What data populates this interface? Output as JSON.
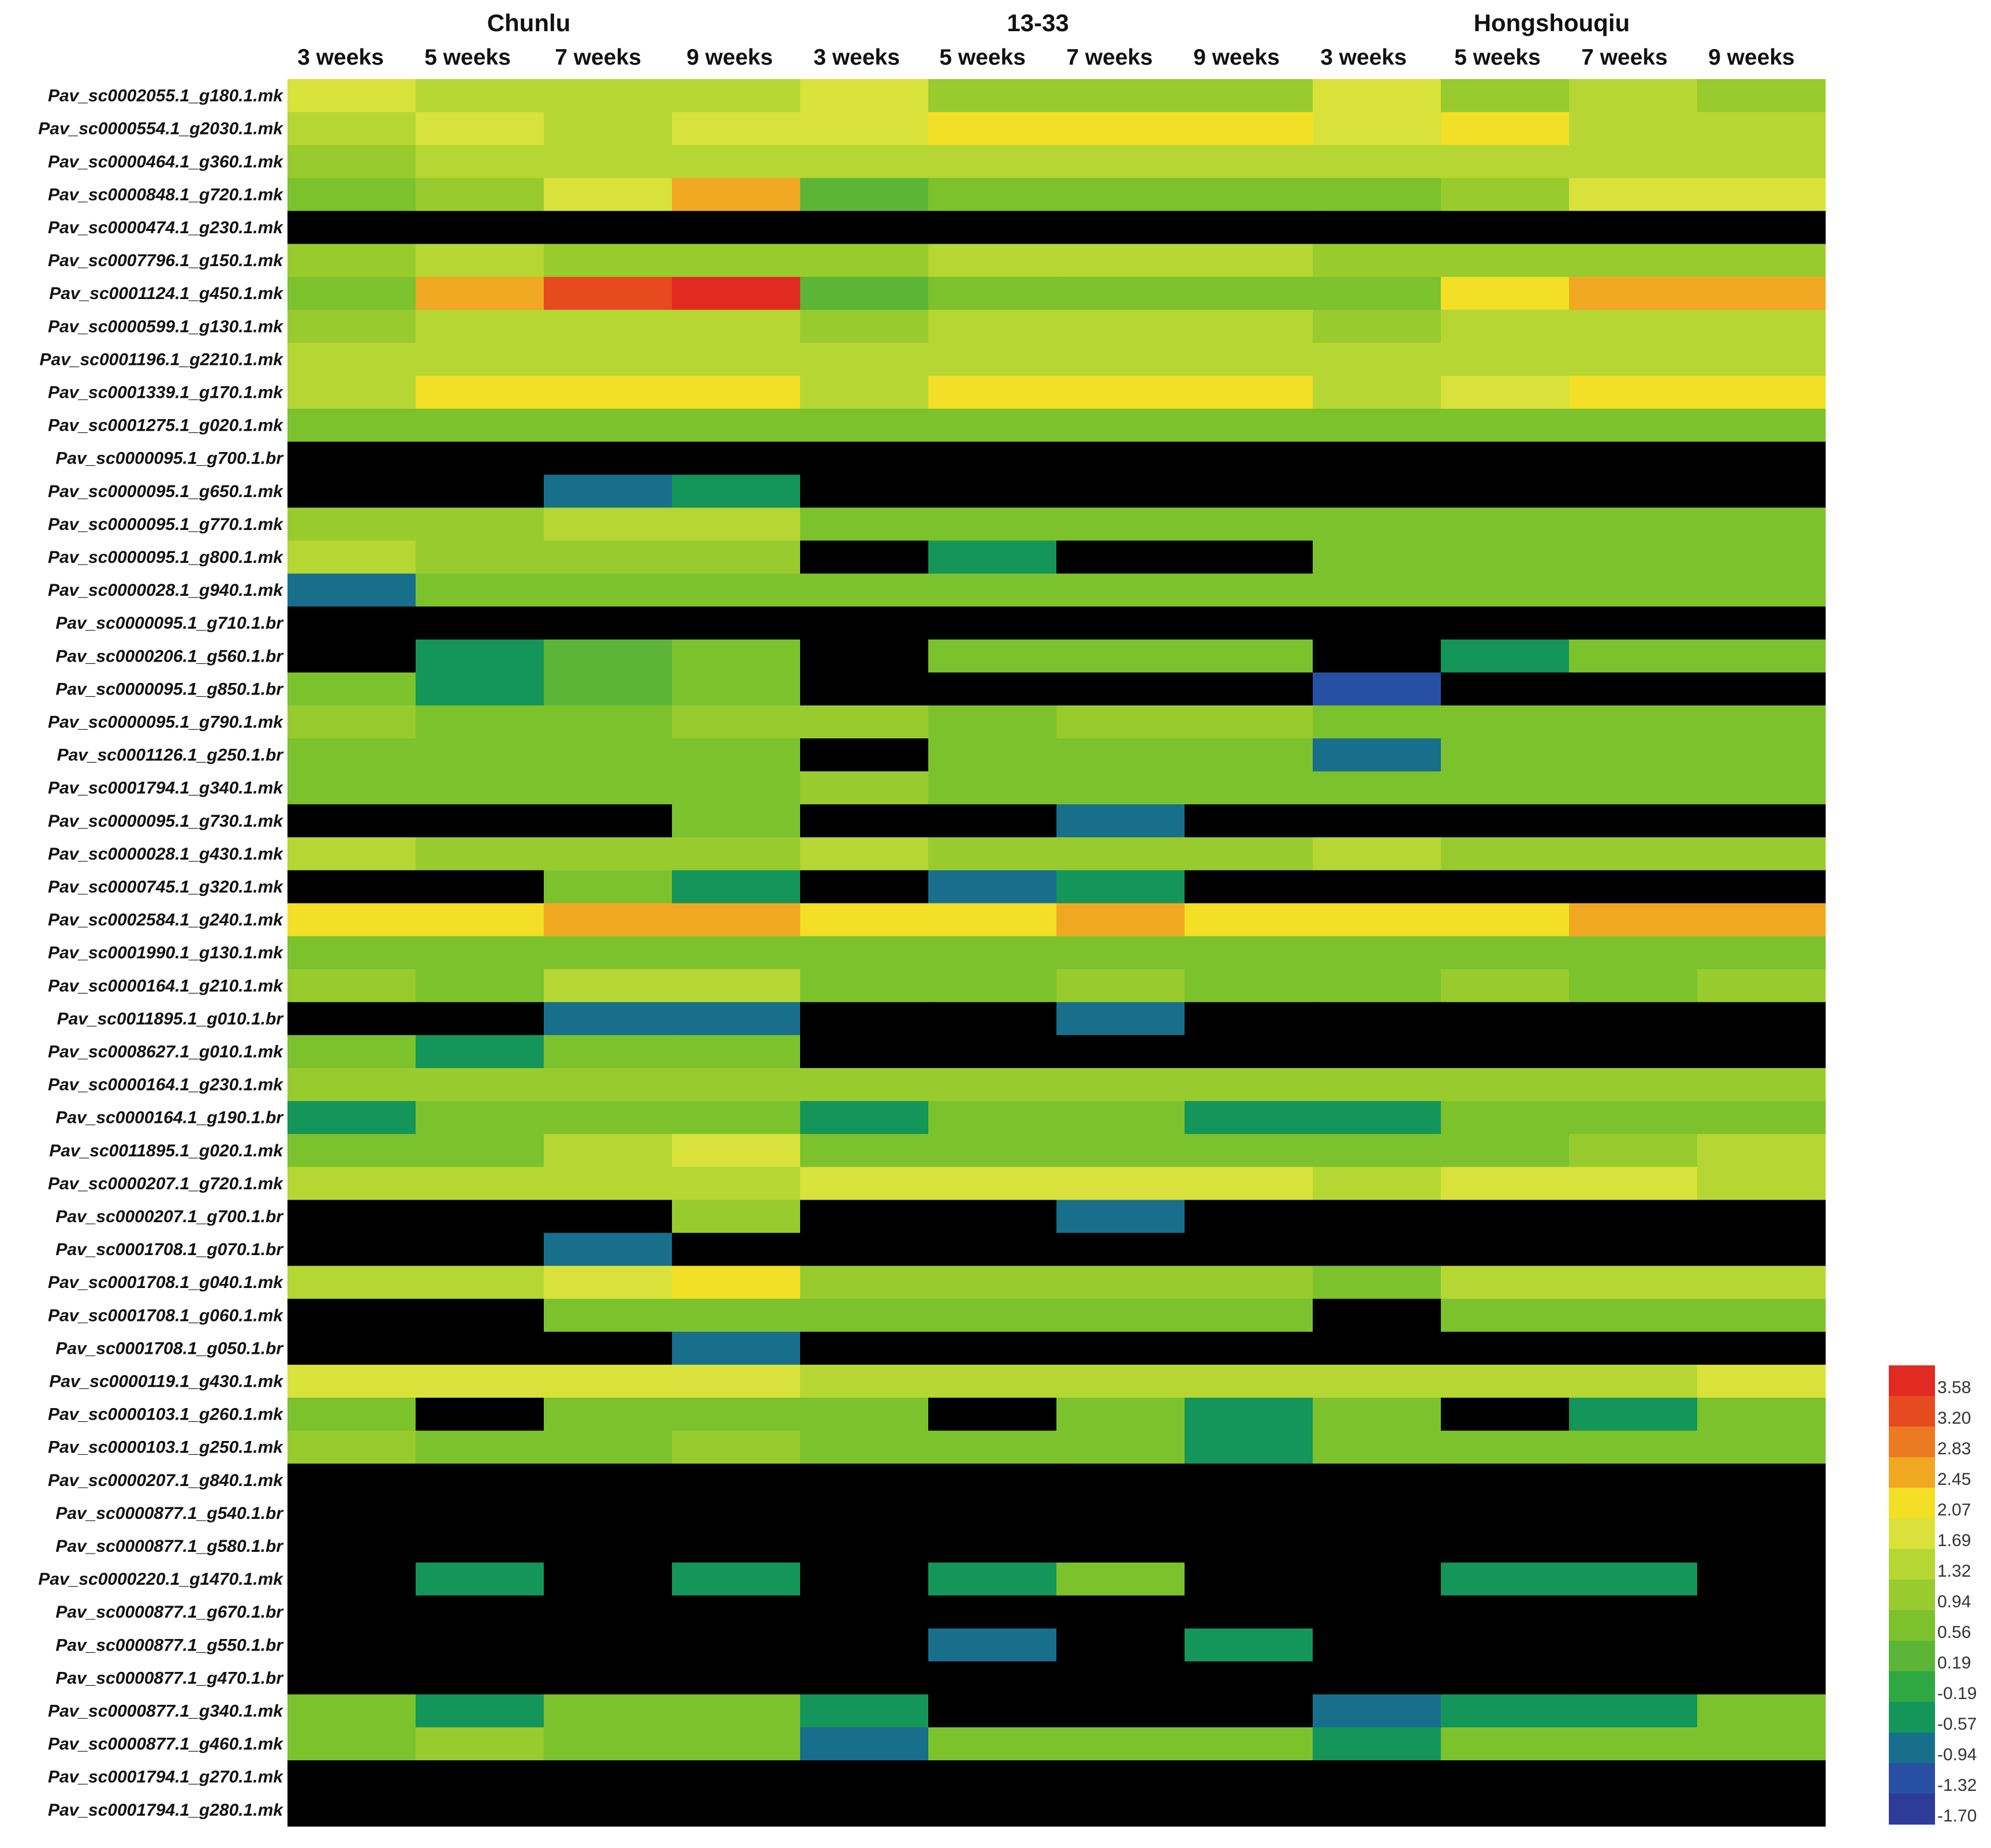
{
  "chart_data": {
    "type": "heatmap",
    "title": "",
    "groups": [
      "Chunlu",
      "13-33",
      "Hongshouqiu"
    ],
    "columns": [
      "3 weeks",
      "5 weeks",
      "7 weeks",
      "9 weeks",
      "3 weeks",
      "5 weeks",
      "7 weeks",
      "9 weeks",
      "3 weeks",
      "5 weeks",
      "7 weeks",
      "9 weeks"
    ],
    "rows": [
      "Pav_sc0002055.1_g180.1.mk",
      "Pav_sc0000554.1_g2030.1.mk",
      "Pav_sc0000464.1_g360.1.mk",
      "Pav_sc0000848.1_g720.1.mk",
      "Pav_sc0000474.1_g230.1.mk",
      "Pav_sc0007796.1_g150.1.mk",
      "Pav_sc0001124.1_g450.1.mk",
      "Pav_sc0000599.1_g130.1.mk",
      "Pav_sc0001196.1_g2210.1.mk",
      "Pav_sc0001339.1_g170.1.mk",
      "Pav_sc0001275.1_g020.1.mk",
      "Pav_sc0000095.1_g700.1.br",
      "Pav_sc0000095.1_g650.1.mk",
      "Pav_sc0000095.1_g770.1.mk",
      "Pav_sc0000095.1_g800.1.mk",
      "Pav_sc0000028.1_g940.1.mk",
      "Pav_sc0000095.1_g710.1.br",
      "Pav_sc0000206.1_g560.1.br",
      "Pav_sc0000095.1_g850.1.br",
      "Pav_sc0000095.1_g790.1.mk",
      "Pav_sc0001126.1_g250.1.br",
      "Pav_sc0001794.1_g340.1.mk",
      "Pav_sc0000095.1_g730.1.mk",
      "Pav_sc0000028.1_g430.1.mk",
      "Pav_sc0000745.1_g320.1.mk",
      "Pav_sc0002584.1_g240.1.mk",
      "Pav_sc0001990.1_g130.1.mk",
      "Pav_sc0000164.1_g210.1.mk",
      "Pav_sc0011895.1_g010.1.br",
      "Pav_sc0008627.1_g010.1.mk",
      "Pav_sc0000164.1_g230.1.mk",
      "Pav_sc0000164.1_g190.1.br",
      "Pav_sc0011895.1_g020.1.mk",
      "Pav_sc0000207.1_g720.1.mk",
      "Pav_sc0000207.1_g700.1.br",
      "Pav_sc0001708.1_g070.1.br",
      "Pav_sc0001708.1_g040.1.mk",
      "Pav_sc0001708.1_g060.1.mk",
      "Pav_sc0001708.1_g050.1.br",
      "Pav_sc0000119.1_g430.1.mk",
      "Pav_sc0000103.1_g260.1.mk",
      "Pav_sc0000103.1_g250.1.mk",
      "Pav_sc0000207.1_g840.1.mk",
      "Pav_sc0000877.1_g540.1.br",
      "Pav_sc0000877.1_g580.1.br",
      "Pav_sc0000220.1_g1470.1.mk",
      "Pav_sc0000877.1_g670.1.br",
      "Pav_sc0000877.1_g550.1.br",
      "Pav_sc0000877.1_g470.1.br",
      "Pav_sc0000877.1_g340.1.mk",
      "Pav_sc0000877.1_g460.1.mk",
      "Pav_sc0001794.1_g270.1.mk",
      "Pav_sc0001794.1_g280.1.mk"
    ],
    "missing_value_color": "#000000",
    "values": [
      [
        1.69,
        1.2,
        1.2,
        1.2,
        1.69,
        1.0,
        1.0,
        1.0,
        1.69,
        1.0,
        1.2,
        1.0
      ],
      [
        1.2,
        1.69,
        1.2,
        1.69,
        1.69,
        2.07,
        2.07,
        2.07,
        1.69,
        2.07,
        1.5,
        1.5
      ],
      [
        0.85,
        1.2,
        1.2,
        1.2,
        1.2,
        1.2,
        1.2,
        1.2,
        1.2,
        1.2,
        1.2,
        1.2
      ],
      [
        0.6,
        0.85,
        1.69,
        2.45,
        0.19,
        0.6,
        0.6,
        0.6,
        0.6,
        0.85,
        1.69,
        1.69
      ],
      [
        null,
        null,
        null,
        null,
        null,
        null,
        null,
        null,
        null,
        null,
        null,
        null
      ],
      [
        0.94,
        1.2,
        1.0,
        1.0,
        1.0,
        1.2,
        1.2,
        1.2,
        0.94,
        1.0,
        1.0,
        1.0
      ],
      [
        0.6,
        2.45,
        3.2,
        3.58,
        0.19,
        0.6,
        0.6,
        0.6,
        0.4,
        2.07,
        2.45,
        2.45
      ],
      [
        0.85,
        1.2,
        1.2,
        1.2,
        0.94,
        1.2,
        1.2,
        1.2,
        0.94,
        1.2,
        1.2,
        1.2
      ],
      [
        1.2,
        1.5,
        1.5,
        1.5,
        1.5,
        1.5,
        1.5,
        1.5,
        1.5,
        1.5,
        1.5,
        1.5
      ],
      [
        1.2,
        2.07,
        2.07,
        2.07,
        1.2,
        2.07,
        2.07,
        2.07,
        1.2,
        1.69,
        2.07,
        2.07
      ],
      [
        0.56,
        0.56,
        0.56,
        0.56,
        0.56,
        0.56,
        0.56,
        0.56,
        0.56,
        0.56,
        0.56,
        0.56
      ],
      [
        null,
        null,
        null,
        null,
        null,
        null,
        null,
        null,
        null,
        null,
        null,
        null
      ],
      [
        null,
        null,
        -0.94,
        -0.57,
        null,
        null,
        null,
        null,
        null,
        null,
        null,
        null
      ],
      [
        0.94,
        0.94,
        1.2,
        1.2,
        0.6,
        0.56,
        0.6,
        0.6,
        0.6,
        0.6,
        0.6,
        0.6
      ],
      [
        1.2,
        0.94,
        0.94,
        0.94,
        null,
        -0.57,
        null,
        null,
        0.56,
        0.56,
        0.56,
        0.56
      ],
      [
        -0.94,
        0.4,
        0.4,
        0.4,
        0.4,
        0.56,
        0.4,
        0.4,
        0.4,
        0.4,
        0.4,
        0.56
      ],
      [
        null,
        null,
        null,
        null,
        null,
        null,
        null,
        null,
        null,
        null,
        null,
        null
      ],
      [
        null,
        -0.57,
        0.19,
        0.56,
        null,
        0.4,
        0.56,
        0.56,
        null,
        -0.57,
        0.4,
        0.56
      ],
      [
        0.56,
        -0.57,
        0.19,
        0.4,
        null,
        null,
        null,
        null,
        -1.32,
        null,
        null,
        null
      ],
      [
        0.94,
        0.56,
        0.56,
        0.94,
        0.94,
        0.56,
        0.94,
        0.94,
        0.56,
        0.56,
        0.56,
        0.56
      ],
      [
        0.4,
        0.4,
        0.56,
        0.56,
        null,
        0.56,
        0.56,
        0.56,
        -0.94,
        0.56,
        0.56,
        0.56
      ],
      [
        0.56,
        0.56,
        0.56,
        0.56,
        0.94,
        0.56,
        0.56,
        0.56,
        0.56,
        0.56,
        0.56,
        0.56
      ],
      [
        null,
        null,
        null,
        0.4,
        null,
        null,
        -0.94,
        null,
        null,
        null,
        null,
        null
      ],
      [
        1.2,
        0.94,
        0.94,
        0.94,
        1.2,
        0.94,
        0.94,
        0.94,
        1.2,
        0.94,
        0.94,
        0.94
      ],
      [
        null,
        null,
        0.4,
        -0.57,
        null,
        -0.94,
        -0.57,
        null,
        null,
        null,
        null,
        null
      ],
      [
        2.07,
        2.07,
        2.45,
        2.45,
        2.07,
        2.07,
        2.45,
        2.07,
        2.07,
        2.07,
        2.45,
        2.45
      ],
      [
        0.56,
        0.56,
        0.56,
        0.56,
        0.56,
        0.56,
        0.56,
        0.56,
        0.56,
        0.56,
        0.56,
        0.56
      ],
      [
        0.94,
        0.56,
        1.2,
        1.2,
        0.56,
        0.56,
        0.94,
        0.56,
        0.56,
        0.94,
        0.56,
        0.94
      ],
      [
        null,
        null,
        -0.94,
        -0.94,
        null,
        null,
        -0.94,
        null,
        null,
        null,
        null,
        null
      ],
      [
        0.4,
        -0.57,
        0.56,
        0.56,
        null,
        null,
        null,
        null,
        null,
        null,
        null,
        null
      ],
      [
        0.94,
        0.94,
        0.94,
        0.94,
        0.94,
        0.94,
        0.94,
        0.94,
        0.94,
        0.94,
        0.94,
        0.94
      ],
      [
        -0.57,
        0.4,
        0.56,
        0.56,
        -0.57,
        0.56,
        0.4,
        -0.57,
        -0.57,
        0.4,
        0.56,
        0.56
      ],
      [
        0.56,
        0.56,
        1.2,
        1.69,
        0.56,
        0.56,
        0.56,
        0.4,
        0.56,
        0.56,
        0.94,
        1.2
      ],
      [
        1.2,
        1.2,
        1.2,
        1.2,
        1.69,
        1.69,
        1.69,
        1.69,
        1.2,
        1.69,
        1.69,
        1.2
      ],
      [
        null,
        null,
        null,
        0.94,
        null,
        null,
        -0.94,
        null,
        null,
        null,
        null,
        null
      ],
      [
        null,
        null,
        -0.94,
        null,
        null,
        null,
        null,
        null,
        null,
        null,
        null,
        null
      ],
      [
        1.2,
        1.2,
        1.69,
        2.07,
        0.94,
        0.94,
        0.94,
        0.94,
        0.56,
        1.2,
        1.2,
        1.2
      ],
      [
        null,
        null,
        0.4,
        0.56,
        0.56,
        0.56,
        0.56,
        0.56,
        null,
        0.56,
        0.56,
        0.56
      ],
      [
        null,
        null,
        null,
        -0.94,
        null,
        null,
        null,
        null,
        null,
        null,
        null,
        null
      ],
      [
        1.69,
        1.69,
        1.69,
        1.69,
        1.2,
        1.2,
        1.2,
        1.2,
        1.2,
        1.2,
        1.2,
        1.69
      ],
      [
        0.56,
        null,
        0.4,
        0.56,
        0.4,
        null,
        0.56,
        -0.57,
        0.56,
        null,
        -0.57,
        0.56
      ],
      [
        0.94,
        0.4,
        0.56,
        0.94,
        0.56,
        0.4,
        0.56,
        -0.57,
        0.56,
        0.4,
        0.56,
        0.56
      ],
      [
        null,
        null,
        null,
        null,
        null,
        null,
        null,
        null,
        null,
        null,
        null,
        null
      ],
      [
        null,
        null,
        null,
        null,
        null,
        null,
        null,
        null,
        null,
        null,
        null,
        null
      ],
      [
        null,
        null,
        null,
        null,
        null,
        null,
        null,
        null,
        null,
        null,
        null,
        null
      ],
      [
        null,
        -0.57,
        null,
        -0.57,
        null,
        -0.57,
        0.4,
        null,
        null,
        -0.57,
        -0.57,
        null
      ],
      [
        null,
        null,
        null,
        null,
        null,
        null,
        null,
        null,
        null,
        null,
        null,
        null
      ],
      [
        null,
        null,
        null,
        null,
        null,
        -0.94,
        null,
        -0.57,
        null,
        null,
        null,
        null
      ],
      [
        null,
        null,
        null,
        null,
        null,
        null,
        null,
        null,
        null,
        null,
        null,
        null
      ],
      [
        0.4,
        -0.57,
        0.4,
        0.4,
        -0.57,
        null,
        null,
        null,
        -0.94,
        -0.57,
        -0.57,
        0.4
      ],
      [
        0.56,
        0.94,
        0.56,
        0.56,
        -0.94,
        0.56,
        0.56,
        0.56,
        -0.57,
        0.56,
        0.56,
        0.56
      ],
      [
        null,
        null,
        null,
        null,
        null,
        null,
        null,
        null,
        null,
        null,
        null,
        null
      ],
      [
        null,
        null,
        null,
        null,
        null,
        null,
        null,
        null,
        null,
        null,
        null,
        null
      ]
    ],
    "colorscale": {
      "labels": [
        "3.58",
        "3.20",
        "2.83",
        "2.45",
        "2.07",
        "1.69",
        "1.32",
        "0.94",
        "0.56",
        "0.19",
        "-0.19",
        "-0.57",
        "-0.94",
        "-1.32",
        "-1.70"
      ],
      "values": [
        3.58,
        3.2,
        2.83,
        2.45,
        2.07,
        1.69,
        1.32,
        0.94,
        0.56,
        0.19,
        -0.19,
        -0.57,
        -0.94,
        -1.32,
        -1.7
      ],
      "colors": [
        "#e02a22",
        "#e64a1e",
        "#ec7a22",
        "#f0a822",
        "#f2df26",
        "#d8e23a",
        "#b6d633",
        "#98cb2e",
        "#7cc22c",
        "#5cb536",
        "#2fa743",
        "#149559",
        "#176f8c",
        "#2750a4",
        "#2c3c98"
      ]
    }
  }
}
